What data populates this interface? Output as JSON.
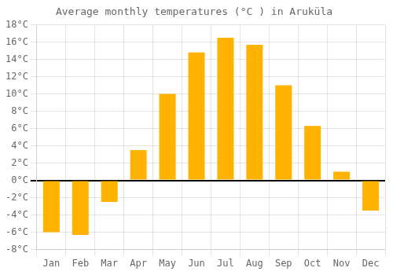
{
  "chart_data": {
    "type": "bar",
    "title": "Average monthly temperatures (°C ) in Aruküla",
    "categories": [
      "Jan",
      "Feb",
      "Mar",
      "Apr",
      "May",
      "Jun",
      "Jul",
      "Aug",
      "Sep",
      "Oct",
      "Nov",
      "Dec"
    ],
    "values": [
      -6.0,
      -6.3,
      -2.5,
      3.5,
      10.0,
      14.8,
      16.5,
      15.7,
      11.0,
      6.3,
      1.0,
      -3.5
    ],
    "color": "#FFB300",
    "ylim": [
      -8,
      18
    ],
    "yticks": [
      {
        "value": -8,
        "label": "-8°C"
      },
      {
        "value": -6,
        "label": "-6°C"
      },
      {
        "value": -4,
        "label": "-4°C"
      },
      {
        "value": -2,
        "label": "-2°C"
      },
      {
        "value": 0,
        "label": "0°C"
      },
      {
        "value": 2,
        "label": "2°C"
      },
      {
        "value": 4,
        "label": "4°C"
      },
      {
        "value": 6,
        "label": "6°C"
      },
      {
        "value": 8,
        "label": "8°C"
      },
      {
        "value": 10,
        "label": "10°C"
      },
      {
        "value": 12,
        "label": "12°C"
      },
      {
        "value": 14,
        "label": "14°C"
      },
      {
        "value": 16,
        "label": "16°C"
      },
      {
        "value": 18,
        "label": "18°C"
      }
    ],
    "grid": true
  }
}
